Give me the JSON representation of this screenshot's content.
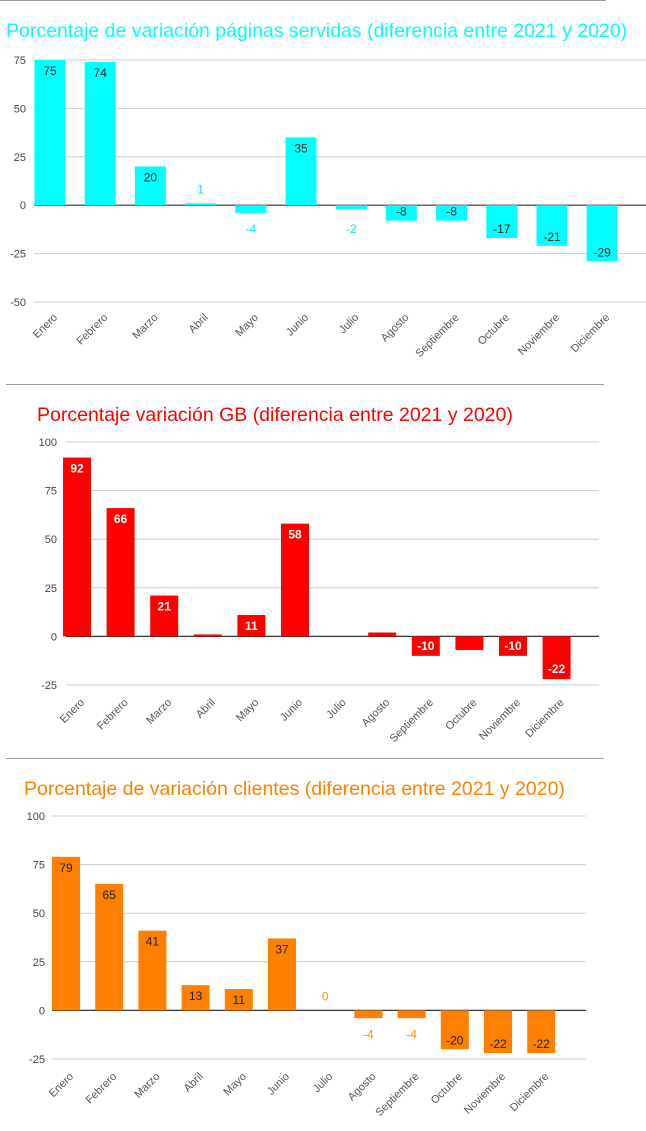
{
  "chart_data": [
    {
      "type": "bar",
      "title": "Porcentaje de variación páginas servidas (diferencia entre 2021 y 2020)",
      "color": "#00FFFF",
      "label_color": "#00E5E5",
      "categories": [
        "Enero",
        "Febrero",
        "Marzo",
        "Abril",
        "Mayo",
        "Junio",
        "Julio",
        "Agosto",
        "Septiembre",
        "Octubre",
        "Noviembre",
        "Diciembre"
      ],
      "values": [
        75,
        74,
        20,
        1,
        -4,
        35,
        -2,
        -8,
        -8,
        -17,
        -21,
        -29
      ],
      "labels": [
        "75",
        "74",
        "20",
        "1",
        "-4",
        "35",
        "-2",
        "-8",
        "-8",
        "-17",
        "-21",
        "-29"
      ],
      "yticks": [
        "75",
        "50",
        "25",
        "0",
        "-25",
        "-50"
      ],
      "ylim": [
        -50,
        75
      ],
      "grid": true,
      "legend": "none"
    },
    {
      "type": "bar",
      "title": "Porcentaje variación GB (diferencia entre 2021 y 2020)",
      "color": "#FF0000",
      "label_color": "#FFFFFF",
      "categories": [
        "Enero",
        "Febrero",
        "Marzo",
        "Abril",
        "Mayo",
        "Junio",
        "Julio",
        "Agosto",
        "Septiembre",
        "Octubre",
        "Noviembre",
        "Diciembre"
      ],
      "values": [
        92,
        66,
        21,
        1,
        11,
        58,
        0,
        2,
        -10,
        -7,
        -10,
        -22
      ],
      "labels": [
        "92",
        "66",
        "21",
        "",
        "11",
        "58",
        "",
        "",
        "-10",
        "",
        "-10",
        "-22"
      ],
      "yticks": [
        "100",
        "75",
        "50",
        "25",
        "0",
        "-25"
      ],
      "ylim": [
        -25,
        100
      ],
      "grid": true,
      "legend": "none"
    },
    {
      "type": "bar",
      "title": "Porcentaje de variación clientes (diferencia entre 2021 y 2020)",
      "color": "#FF8000",
      "label_color": "#FF8C00",
      "categories": [
        "Enero",
        "Febrero",
        "Marzo",
        "Abril",
        "Mayo",
        "Junio",
        "Julio",
        "Agosto",
        "Septiembre",
        "Octubre",
        "Noviembre",
        "Diciembre"
      ],
      "values": [
        79,
        65,
        41,
        13,
        11,
        37,
        0,
        -4,
        -4,
        -20,
        -22,
        -22
      ],
      "labels": [
        "79",
        "65",
        "41",
        "13",
        "11",
        "37",
        "0",
        "-4",
        "-4",
        "-20",
        "-22",
        "-22"
      ],
      "yticks": [
        "100",
        "75",
        "50",
        "25",
        "0",
        "-25"
      ],
      "ylim": [
        -25,
        100
      ],
      "grid": true,
      "legend": "none"
    }
  ]
}
